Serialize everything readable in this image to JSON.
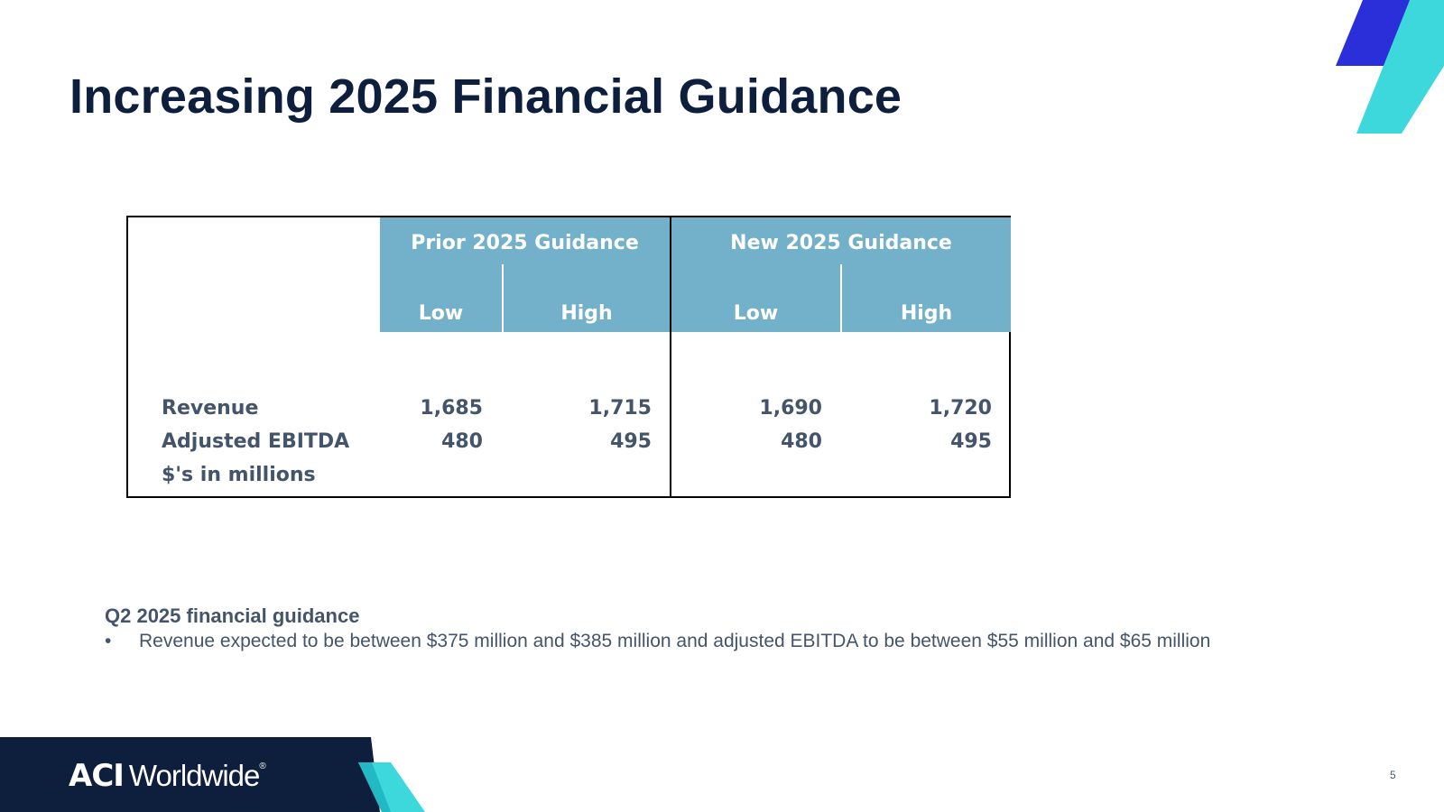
{
  "slide": {
    "title": "Increasing 2025 Financial Guidance",
    "page_number": "5"
  },
  "table": {
    "groups": [
      "Prior 2025 Guidance",
      "New 2025 Guidance"
    ],
    "subheaders": [
      "Low",
      "High",
      "Low",
      "High"
    ],
    "rows": [
      {
        "label": "Revenue",
        "values": [
          "1,685",
          "1,715",
          "1,690",
          "1,720"
        ]
      },
      {
        "label": "Adjusted EBITDA",
        "values": [
          "480",
          "495",
          "480",
          "495"
        ]
      }
    ],
    "units_note": "$'s in millions"
  },
  "q2": {
    "heading": "Q2 2025 financial guidance",
    "bullet_marker": "•",
    "bullet": "Revenue expected to be between $375 million and $385 million and adjusted EBITDA to be between $55 million and $65 million"
  },
  "footer": {
    "logo_mark": "ACI",
    "logo_word": "Worldwide",
    "logo_reg": "®"
  },
  "colors": {
    "title": "#0e1f3d",
    "header_band": "#72b1c9",
    "body_text": "#44546a",
    "navy": "#0e1f3d",
    "accent_blue": "#2b2fd9",
    "accent_teal": "#3dd8dc"
  }
}
